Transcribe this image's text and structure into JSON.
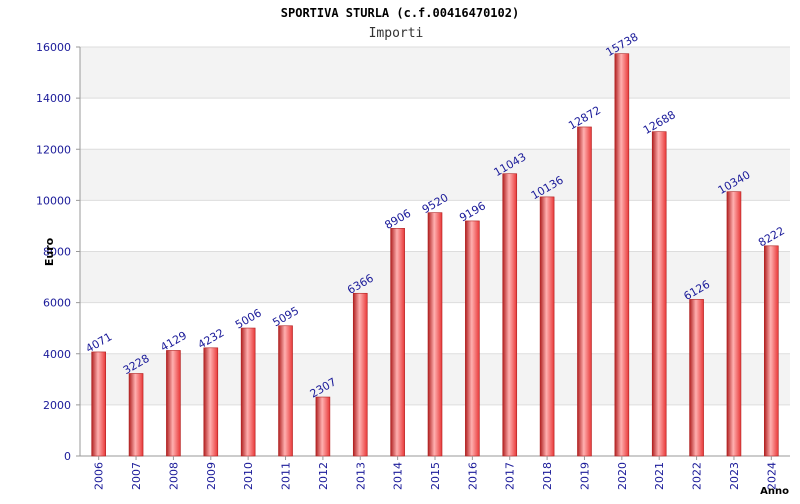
{
  "chart_data": {
    "type": "bar",
    "title": "SPORTIVA STURLA (c.f.00416470102)",
    "subtitle": "Importi",
    "xlabel": "Anno",
    "ylabel": "Euro",
    "categories": [
      "2006",
      "2007",
      "2008",
      "2009",
      "2010",
      "2011",
      "2012",
      "2013",
      "2014",
      "2015",
      "2016",
      "2017",
      "2018",
      "2019",
      "2020",
      "2021",
      "2022",
      "2023",
      "2024"
    ],
    "values": [
      4071,
      3228,
      4129,
      4232,
      5006,
      5095,
      2307,
      6366,
      8906,
      9520,
      9196,
      11043,
      10136,
      12872,
      15738,
      12688,
      6126,
      10340,
      8222
    ],
    "ylim": [
      0,
      16000
    ],
    "yticks": [
      0,
      2000,
      4000,
      6000,
      8000,
      10000,
      12000,
      14000,
      16000
    ],
    "grid": true,
    "legend": "none",
    "colors": {
      "bar_edge": "#b02020",
      "bar_light": "#ffb0b0",
      "bar_mid": "#e83838",
      "label": "#1a1a99",
      "band": "#f3f3f3",
      "grid": "#dddddd"
    }
  }
}
